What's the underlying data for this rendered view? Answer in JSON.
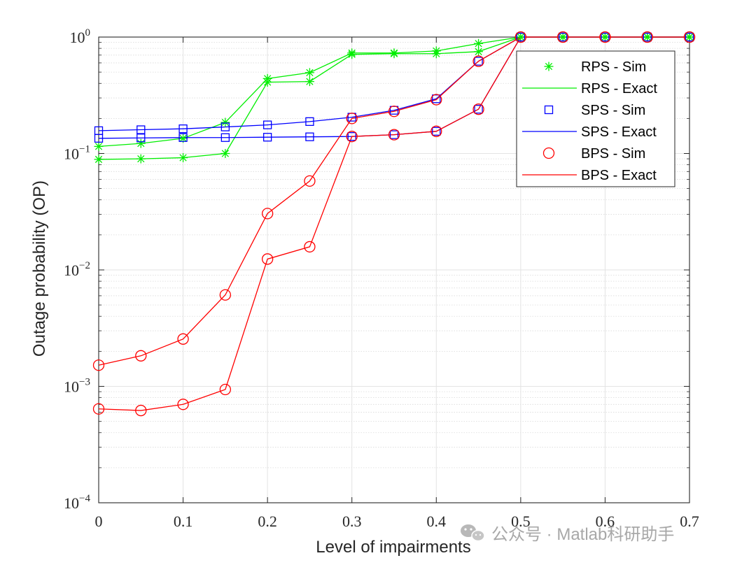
{
  "chart_data": {
    "type": "line",
    "xlabel": "Level of impairments",
    "ylabel": "Outage probability (OP)",
    "xlim": [
      0,
      0.7
    ],
    "ylim": [
      0.0001,
      1
    ],
    "yscale": "log",
    "grid": true,
    "minor_grid": true,
    "x_ticks": [
      0,
      0.1,
      0.2,
      0.3,
      0.4,
      0.5,
      0.6,
      0.7
    ],
    "x_tick_labels": [
      "0",
      "0.1",
      "0.2",
      "0.3",
      "0.4",
      "0.5",
      "0.6",
      "0.7"
    ],
    "y_ticks": [
      {
        "value": 1,
        "base": "10",
        "exp": "0"
      },
      {
        "value": 0.1,
        "base": "10",
        "exp": "−1"
      },
      {
        "value": 0.01,
        "base": "10",
        "exp": "−2"
      },
      {
        "value": 0.001,
        "base": "10",
        "exp": "−3"
      },
      {
        "value": 0.0001,
        "base": "10",
        "exp": "−4"
      }
    ],
    "legend_position": "top-right",
    "x": [
      0,
      0.05,
      0.1,
      0.15,
      0.2,
      0.25,
      0.3,
      0.35,
      0.4,
      0.45,
      0.5,
      0.55,
      0.6,
      0.65,
      0.7
    ],
    "groups": [
      {
        "color": "#00ee00",
        "marker": "asterisk",
        "sim_name": "RPS - Sim",
        "exact_name": "RPS - Exact",
        "curves": [
          [
            0.115,
            0.122,
            0.135,
            0.185,
            0.44,
            0.495,
            0.73,
            0.73,
            0.76,
            0.88,
            1,
            1,
            1,
            1,
            1
          ],
          [
            0.089,
            0.09,
            0.092,
            0.1,
            0.41,
            0.415,
            0.71,
            0.72,
            0.72,
            0.75,
            1,
            1,
            1,
            1,
            1
          ]
        ]
      },
      {
        "color": "#0000ff",
        "marker": "square",
        "sim_name": "SPS - Sim",
        "exact_name": "SPS - Exact",
        "curves": [
          [
            0.157,
            0.16,
            0.163,
            0.169,
            0.176,
            0.188,
            0.205,
            0.235,
            0.295,
            0.62,
            1,
            1,
            1,
            1,
            1
          ],
          [
            0.135,
            0.136,
            0.137,
            0.137,
            0.138,
            0.139,
            0.14,
            0.145,
            0.155,
            0.24,
            1,
            1,
            1,
            1,
            1
          ]
        ]
      },
      {
        "color": "#ff0000",
        "marker": "circle",
        "sim_name": "BPS - Sim",
        "exact_name": "BPS - Exact",
        "curves": [
          [
            0.00152,
            0.00183,
            0.00255,
            0.0061,
            0.0305,
            0.058,
            0.2,
            0.23,
            0.29,
            0.62,
            1,
            1,
            1,
            1,
            1
          ],
          [
            0.00064,
            0.00062,
            0.0007,
            0.00094,
            0.0124,
            0.0158,
            0.14,
            0.145,
            0.155,
            0.24,
            1,
            1,
            1,
            1,
            1
          ]
        ]
      }
    ]
  },
  "watermark": {
    "icon": "wechat-icon",
    "text": "公众号 · Matlab科研助手"
  }
}
